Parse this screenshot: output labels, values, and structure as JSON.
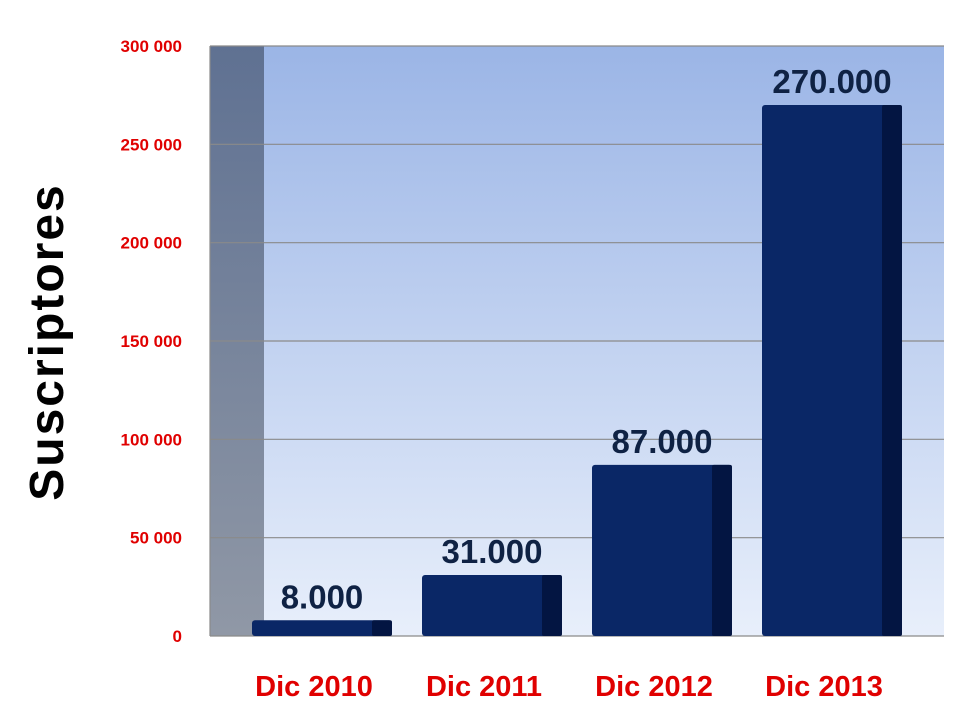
{
  "chart_data": {
    "type": "bar",
    "title": "",
    "xlabel": "",
    "ylabel": "Suscriptores",
    "categories": [
      "Dic 2010",
      "Dic 2011",
      "Dic 2012",
      "Dic 2013"
    ],
    "values": [
      8000,
      31000,
      87000,
      270000
    ],
    "data_labels": [
      "8.000",
      "31.000",
      "87.000",
      "270.000"
    ],
    "ylim": [
      0,
      300000
    ],
    "yticks": [
      0,
      50000,
      100000,
      150000,
      200000,
      250000,
      300000
    ],
    "ytick_labels": [
      "0",
      "50 000",
      "100 000",
      "150 000",
      "200 000",
      "250 000",
      "300 000"
    ],
    "grid": true,
    "legend": "none",
    "colors": {
      "bar": "#0a2766",
      "bar_side": "#031542",
      "tick_text": "#e00000",
      "category_text": "#e00000",
      "data_label_text": "#0f2244",
      "ylabel_text": "#000000",
      "plot_bg_top": "#9bb5e6",
      "plot_bg_bottom": "#e8effb",
      "wall_top": "#5f7192",
      "wall_bottom": "#9098a6",
      "grid": "#8a8a8a"
    }
  }
}
